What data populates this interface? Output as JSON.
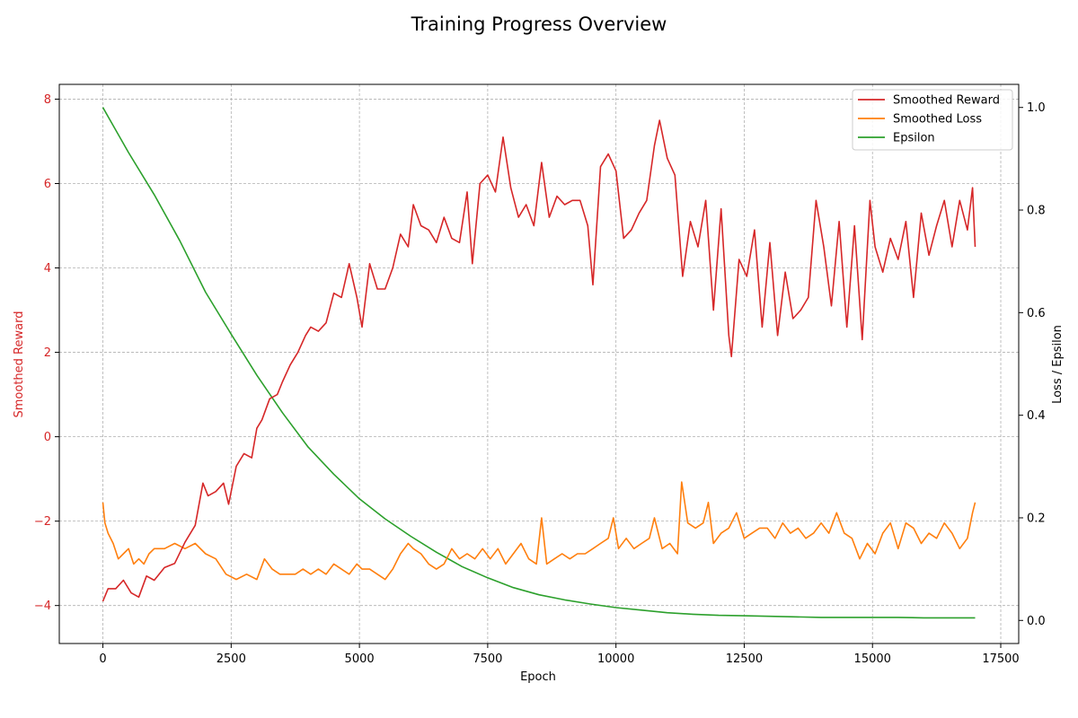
{
  "chart_data": {
    "type": "line",
    "title": "Training Progress Overview",
    "xlabel": "Epoch",
    "ylabel_left": "Smoothed Reward",
    "ylabel_right": "Loss / Epsilon",
    "xlim": [
      -850,
      17850
    ],
    "ylim_left": [
      -4.9,
      8.35
    ],
    "ylim_right": [
      -0.045,
      1.045
    ],
    "x_ticks": [
      0,
      2500,
      5000,
      7500,
      10000,
      12500,
      15000,
      17500
    ],
    "y_left_ticks": [
      -4,
      -2,
      0,
      2,
      4,
      6,
      8
    ],
    "y_right_ticks": [
      0.0,
      0.2,
      0.4,
      0.6,
      0.8,
      1.0
    ],
    "grid": true,
    "legend_position": "top-right",
    "colors": {
      "reward": "#d62728",
      "loss": "#ff7f0e",
      "epsilon": "#2ca02c",
      "left_axis": "#d62728",
      "right_axis": "#000000"
    },
    "series": [
      {
        "name": "Smoothed Reward",
        "axis": "left",
        "x": [
          0,
          100,
          250,
          400,
          550,
          700,
          850,
          1000,
          1200,
          1400,
          1600,
          1800,
          1950,
          2050,
          2200,
          2350,
          2450,
          2600,
          2750,
          2900,
          3000,
          3100,
          3250,
          3400,
          3500,
          3650,
          3800,
          3950,
          4050,
          4200,
          4350,
          4500,
          4650,
          4800,
          4950,
          5050,
          5200,
          5350,
          5500,
          5650,
          5800,
          5950,
          6050,
          6200,
          6350,
          6500,
          6650,
          6800,
          6950,
          7100,
          7200,
          7350,
          7500,
          7650,
          7800,
          7950,
          8100,
          8250,
          8400,
          8550,
          8700,
          8850,
          9000,
          9150,
          9300,
          9450,
          9550,
          9700,
          9850,
          10000,
          10150,
          10300,
          10450,
          10600,
          10750,
          10850,
          11000,
          11150,
          11300,
          11450,
          11600,
          11750,
          11900,
          12050,
          12200,
          12250,
          12400,
          12550,
          12700,
          12850,
          13000,
          13150,
          13300,
          13450,
          13600,
          13750,
          13900,
          14050,
          14200,
          14350,
          14500,
          14650,
          14800,
          14950,
          15050,
          15200,
          15350,
          15500,
          15650,
          15800,
          15950,
          16100,
          16250,
          16400,
          16550,
          16700,
          16850,
          16950,
          17000
        ],
        "values": [
          -3.9,
          -3.6,
          -3.6,
          -3.4,
          -3.7,
          -3.8,
          -3.3,
          -3.4,
          -3.1,
          -3.0,
          -2.5,
          -2.1,
          -1.1,
          -1.4,
          -1.3,
          -1.1,
          -1.6,
          -0.7,
          -0.4,
          -0.5,
          0.2,
          0.4,
          0.9,
          1.0,
          1.3,
          1.7,
          2.0,
          2.4,
          2.6,
          2.5,
          2.7,
          3.4,
          3.3,
          4.1,
          3.3,
          2.6,
          4.1,
          3.5,
          3.5,
          4.0,
          4.8,
          4.5,
          5.5,
          5.0,
          4.9,
          4.6,
          5.2,
          4.7,
          4.6,
          5.8,
          4.1,
          6.0,
          6.2,
          5.8,
          7.1,
          5.9,
          5.2,
          5.5,
          5.0,
          6.5,
          5.2,
          5.7,
          5.5,
          5.6,
          5.6,
          5.0,
          3.6,
          6.4,
          6.7,
          6.3,
          4.7,
          4.9,
          5.3,
          5.6,
          6.9,
          7.5,
          6.6,
          6.2,
          3.8,
          5.1,
          4.5,
          5.6,
          3.0,
          5.4,
          2.4,
          1.9,
          4.2,
          3.8,
          4.9,
          2.6,
          4.6,
          2.4,
          3.9,
          2.8,
          3.0,
          3.3,
          5.6,
          4.5,
          3.1,
          5.1,
          2.6,
          5.0,
          2.3,
          5.6,
          4.5,
          3.9,
          4.7,
          4.2,
          5.1,
          3.3,
          5.3,
          4.3,
          5.0,
          5.6,
          4.5,
          5.6,
          4.9,
          5.9,
          4.5
        ]
      },
      {
        "name": "Smoothed Loss",
        "axis": "right",
        "x": [
          0,
          40,
          100,
          200,
          300,
          400,
          500,
          600,
          700,
          800,
          900,
          1000,
          1200,
          1400,
          1600,
          1800,
          2000,
          2200,
          2400,
          2600,
          2800,
          3000,
          3150,
          3300,
          3450,
          3600,
          3750,
          3900,
          4050,
          4200,
          4350,
          4500,
          4650,
          4800,
          4950,
          5050,
          5200,
          5350,
          5500,
          5650,
          5800,
          5950,
          6050,
          6200,
          6350,
          6500,
          6650,
          6800,
          6950,
          7100,
          7250,
          7400,
          7550,
          7700,
          7850,
          8000,
          8150,
          8300,
          8450,
          8550,
          8650,
          8800,
          8950,
          9100,
          9250,
          9400,
          9550,
          9700,
          9850,
          9950,
          10050,
          10200,
          10350,
          10500,
          10650,
          10750,
          10900,
          11050,
          11200,
          11280,
          11400,
          11550,
          11700,
          11800,
          11900,
          12050,
          12200,
          12350,
          12500,
          12650,
          12800,
          12950,
          13100,
          13250,
          13400,
          13550,
          13700,
          13850,
          14000,
          14150,
          14300,
          14450,
          14600,
          14750,
          14900,
          15050,
          15200,
          15350,
          15500,
          15650,
          15800,
          15950,
          16100,
          16250,
          16400,
          16550,
          16700,
          16850,
          16950,
          17000
        ],
        "values": [
          0.23,
          0.19,
          0.17,
          0.15,
          0.12,
          0.13,
          0.14,
          0.11,
          0.12,
          0.11,
          0.13,
          0.14,
          0.14,
          0.15,
          0.14,
          0.15,
          0.13,
          0.12,
          0.09,
          0.08,
          0.09,
          0.08,
          0.12,
          0.1,
          0.09,
          0.09,
          0.09,
          0.1,
          0.09,
          0.1,
          0.09,
          0.11,
          0.1,
          0.09,
          0.11,
          0.1,
          0.1,
          0.09,
          0.08,
          0.1,
          0.13,
          0.15,
          0.14,
          0.13,
          0.11,
          0.1,
          0.11,
          0.14,
          0.12,
          0.13,
          0.12,
          0.14,
          0.12,
          0.14,
          0.11,
          0.13,
          0.15,
          0.12,
          0.11,
          0.2,
          0.11,
          0.12,
          0.13,
          0.12,
          0.13,
          0.13,
          0.14,
          0.15,
          0.16,
          0.2,
          0.14,
          0.16,
          0.14,
          0.15,
          0.16,
          0.2,
          0.14,
          0.15,
          0.13,
          0.27,
          0.19,
          0.18,
          0.19,
          0.23,
          0.15,
          0.17,
          0.18,
          0.21,
          0.16,
          0.17,
          0.18,
          0.18,
          0.16,
          0.19,
          0.17,
          0.18,
          0.16,
          0.17,
          0.19,
          0.17,
          0.21,
          0.17,
          0.16,
          0.12,
          0.15,
          0.13,
          0.17,
          0.19,
          0.14,
          0.19,
          0.18,
          0.15,
          0.17,
          0.16,
          0.19,
          0.17,
          0.14,
          0.16,
          0.21,
          0.23
        ]
      },
      {
        "name": "Epsilon",
        "axis": "right",
        "x": [
          0,
          500,
          1000,
          1500,
          2000,
          2500,
          3000,
          3500,
          4000,
          4500,
          5000,
          5500,
          6000,
          6500,
          7000,
          7500,
          8000,
          8500,
          9000,
          9500,
          10000,
          10500,
          11000,
          11500,
          12000,
          12500,
          13000,
          13500,
          14000,
          14500,
          15000,
          15500,
          16000,
          16500,
          17000
        ],
        "values": [
          1.0,
          0.912,
          0.83,
          0.74,
          0.64,
          0.558,
          0.478,
          0.405,
          0.338,
          0.285,
          0.237,
          0.198,
          0.164,
          0.133,
          0.105,
          0.083,
          0.064,
          0.05,
          0.04,
          0.032,
          0.025,
          0.02,
          0.015,
          0.012,
          0.01,
          0.009,
          0.008,
          0.007,
          0.006,
          0.006,
          0.006,
          0.006,
          0.005,
          0.005,
          0.005
        ]
      }
    ]
  }
}
